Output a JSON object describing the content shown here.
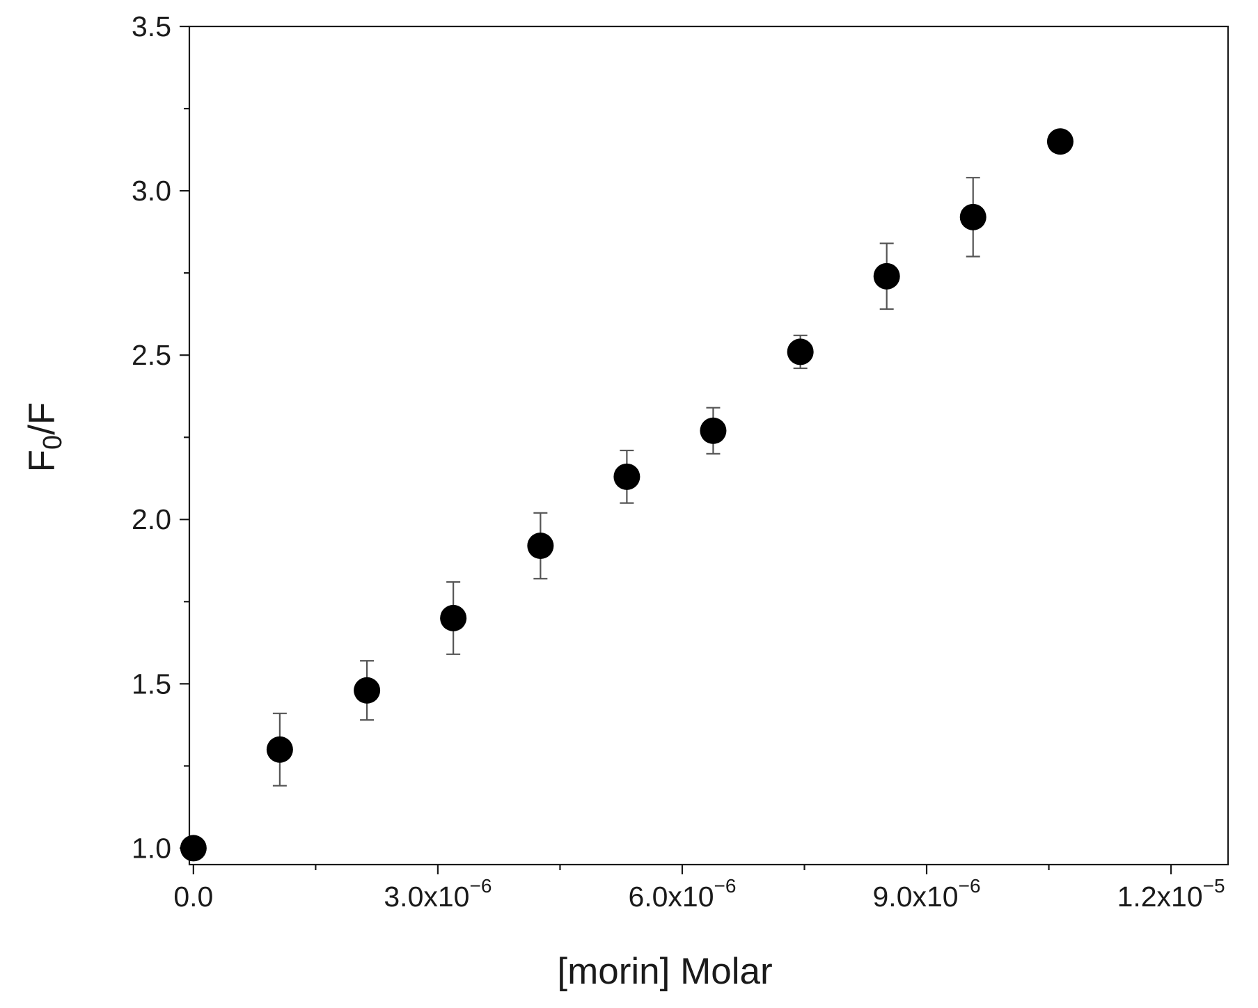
{
  "chart_data": {
    "type": "scatter",
    "title": "",
    "xlabel": "[morin] Molar",
    "ylabel": {
      "base": "F",
      "subscript": "0",
      "suffix": "/F"
    },
    "xlim": [
      -5e-08,
      1.27e-05
    ],
    "ylim": [
      0.95,
      3.5
    ],
    "x_ticks_major": [
      {
        "value": 0,
        "label": "0.0",
        "mantissa": "0.0",
        "exponent": ""
      },
      {
        "value": 3e-06,
        "label": "3.0x10−6",
        "mantissa": "3.0x10",
        "exponent": "−6"
      },
      {
        "value": 6e-06,
        "label": "6.0x10−6",
        "mantissa": "6.0x10",
        "exponent": "−6"
      },
      {
        "value": 9e-06,
        "label": "9.0x10−6",
        "mantissa": "9.0x10",
        "exponent": "−6"
      },
      {
        "value": 1.2e-05,
        "label": "1.2x10−5",
        "mantissa": "1.2x10",
        "exponent": "−5"
      }
    ],
    "x_ticks_minor": [
      1.5e-06,
      4.5e-06,
      7.5e-06,
      1.05e-05
    ],
    "y_ticks_major": [
      {
        "value": 1.0,
        "label": "1.0"
      },
      {
        "value": 1.5,
        "label": "1.5"
      },
      {
        "value": 2.0,
        "label": "2.0"
      },
      {
        "value": 2.5,
        "label": "2.5"
      },
      {
        "value": 3.0,
        "label": "3.0"
      },
      {
        "value": 3.5,
        "label": "3.5"
      }
    ],
    "y_ticks_minor": [
      1.25,
      1.75,
      2.25,
      2.75,
      3.25
    ],
    "grid": false,
    "legend": "none",
    "marker_color": "#000000",
    "errorbar_color": "#555555",
    "series": [
      {
        "x": [
          0,
          1.06e-06,
          2.13e-06,
          3.19e-06,
          4.26e-06,
          5.32e-06,
          6.38e-06,
          7.45e-06,
          8.51e-06,
          9.57e-06,
          1.064e-05
        ],
        "y": [
          1.0,
          1.3,
          1.48,
          1.7,
          1.92,
          2.13,
          2.27,
          2.51,
          2.74,
          2.92,
          3.15
        ],
        "y_err": [
          0.0,
          0.11,
          0.09,
          0.11,
          0.1,
          0.08,
          0.07,
          0.05,
          0.1,
          0.12,
          0.0
        ]
      }
    ]
  }
}
